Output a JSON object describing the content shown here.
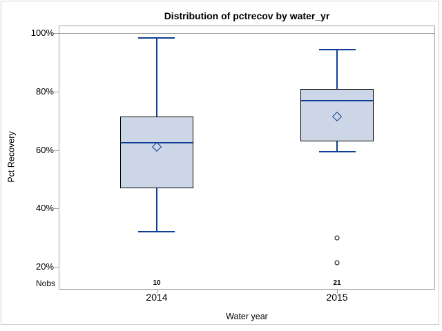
{
  "graph": {
    "title": "Distribution of pctrecov by water_yr",
    "ylabel": "Pct Recovery",
    "xlabel": "Water year",
    "nobs_label": "Nobs"
  },
  "chart_data": {
    "type": "boxplot",
    "title": "Distribution of pctrecov by water_yr",
    "xlabel": "Water year",
    "ylabel": "Pct Recovery",
    "categories": [
      "2014",
      "2015"
    ],
    "nobs_row": {
      "label": "Nobs",
      "values": [
        "10",
        "21"
      ]
    },
    "series": [
      {
        "category": "2014",
        "n": "10",
        "whisker_low": 32,
        "q1": 47,
        "median": 62.5,
        "mean": 61,
        "q3": 71.5,
        "whisker_high": 98.5,
        "outliers": []
      },
      {
        "category": "2015",
        "n": "21",
        "whisker_low": 59.5,
        "q1": 63,
        "median": 77,
        "mean": 71.5,
        "q3": 81,
        "whisker_high": 94.5,
        "outliers": [
          30,
          21.3
        ]
      }
    ],
    "y_axis": {
      "ticks": [
        100,
        80,
        60,
        40,
        20
      ],
      "tick_suffix": "%",
      "range": [
        12.2,
        102.7
      ],
      "reference_line_at": 100
    },
    "grid": false,
    "legend": null,
    "colors": {
      "box_fill": "#ccd6e6",
      "box_border": "#000000",
      "line_blue": "#0f3e96",
      "axis_frame": "#a0a0a0",
      "outlier_stroke": "#000000",
      "outer_border": "#c9ced4",
      "text": "#000000",
      "background": "#ffffff"
    }
  }
}
